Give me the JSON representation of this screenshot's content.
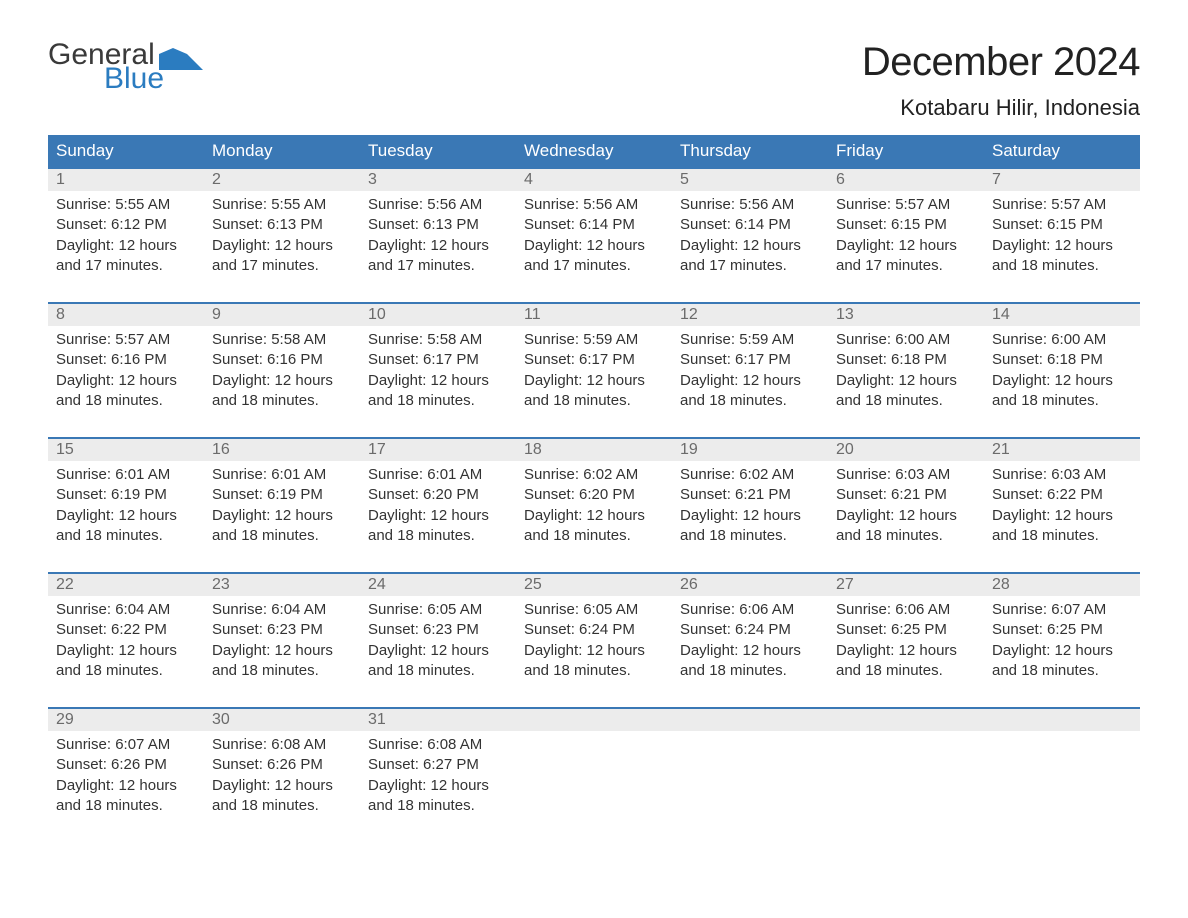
{
  "logo": {
    "word1": "General",
    "word2": "Blue"
  },
  "title": "December 2024",
  "location": "Kotabaru Hilir, Indonesia",
  "colors": {
    "header_bg": "#3a78b5",
    "header_text": "#ffffff",
    "row_border": "#3a78b5",
    "daynum_bg": "#ececec",
    "daynum_text": "#6b6b6b",
    "body_text": "#333333",
    "logo_dark": "#3a3a3a",
    "logo_blue": "#2b7cc0",
    "page_bg": "#ffffff"
  },
  "fonts": {
    "title_size_pt": 30,
    "location_size_pt": 16,
    "header_size_pt": 13,
    "body_size_pt": 11
  },
  "days_of_week": [
    "Sunday",
    "Monday",
    "Tuesday",
    "Wednesday",
    "Thursday",
    "Friday",
    "Saturday"
  ],
  "weeks": [
    [
      {
        "n": "1",
        "sunrise": "Sunrise: 5:55 AM",
        "sunset": "Sunset: 6:12 PM",
        "day1": "Daylight: 12 hours",
        "day2": "and 17 minutes."
      },
      {
        "n": "2",
        "sunrise": "Sunrise: 5:55 AM",
        "sunset": "Sunset: 6:13 PM",
        "day1": "Daylight: 12 hours",
        "day2": "and 17 minutes."
      },
      {
        "n": "3",
        "sunrise": "Sunrise: 5:56 AM",
        "sunset": "Sunset: 6:13 PM",
        "day1": "Daylight: 12 hours",
        "day2": "and 17 minutes."
      },
      {
        "n": "4",
        "sunrise": "Sunrise: 5:56 AM",
        "sunset": "Sunset: 6:14 PM",
        "day1": "Daylight: 12 hours",
        "day2": "and 17 minutes."
      },
      {
        "n": "5",
        "sunrise": "Sunrise: 5:56 AM",
        "sunset": "Sunset: 6:14 PM",
        "day1": "Daylight: 12 hours",
        "day2": "and 17 minutes."
      },
      {
        "n": "6",
        "sunrise": "Sunrise: 5:57 AM",
        "sunset": "Sunset: 6:15 PM",
        "day1": "Daylight: 12 hours",
        "day2": "and 17 minutes."
      },
      {
        "n": "7",
        "sunrise": "Sunrise: 5:57 AM",
        "sunset": "Sunset: 6:15 PM",
        "day1": "Daylight: 12 hours",
        "day2": "and 18 minutes."
      }
    ],
    [
      {
        "n": "8",
        "sunrise": "Sunrise: 5:57 AM",
        "sunset": "Sunset: 6:16 PM",
        "day1": "Daylight: 12 hours",
        "day2": "and 18 minutes."
      },
      {
        "n": "9",
        "sunrise": "Sunrise: 5:58 AM",
        "sunset": "Sunset: 6:16 PM",
        "day1": "Daylight: 12 hours",
        "day2": "and 18 minutes."
      },
      {
        "n": "10",
        "sunrise": "Sunrise: 5:58 AM",
        "sunset": "Sunset: 6:17 PM",
        "day1": "Daylight: 12 hours",
        "day2": "and 18 minutes."
      },
      {
        "n": "11",
        "sunrise": "Sunrise: 5:59 AM",
        "sunset": "Sunset: 6:17 PM",
        "day1": "Daylight: 12 hours",
        "day2": "and 18 minutes."
      },
      {
        "n": "12",
        "sunrise": "Sunrise: 5:59 AM",
        "sunset": "Sunset: 6:17 PM",
        "day1": "Daylight: 12 hours",
        "day2": "and 18 minutes."
      },
      {
        "n": "13",
        "sunrise": "Sunrise: 6:00 AM",
        "sunset": "Sunset: 6:18 PM",
        "day1": "Daylight: 12 hours",
        "day2": "and 18 minutes."
      },
      {
        "n": "14",
        "sunrise": "Sunrise: 6:00 AM",
        "sunset": "Sunset: 6:18 PM",
        "day1": "Daylight: 12 hours",
        "day2": "and 18 minutes."
      }
    ],
    [
      {
        "n": "15",
        "sunrise": "Sunrise: 6:01 AM",
        "sunset": "Sunset: 6:19 PM",
        "day1": "Daylight: 12 hours",
        "day2": "and 18 minutes."
      },
      {
        "n": "16",
        "sunrise": "Sunrise: 6:01 AM",
        "sunset": "Sunset: 6:19 PM",
        "day1": "Daylight: 12 hours",
        "day2": "and 18 minutes."
      },
      {
        "n": "17",
        "sunrise": "Sunrise: 6:01 AM",
        "sunset": "Sunset: 6:20 PM",
        "day1": "Daylight: 12 hours",
        "day2": "and 18 minutes."
      },
      {
        "n": "18",
        "sunrise": "Sunrise: 6:02 AM",
        "sunset": "Sunset: 6:20 PM",
        "day1": "Daylight: 12 hours",
        "day2": "and 18 minutes."
      },
      {
        "n": "19",
        "sunrise": "Sunrise: 6:02 AM",
        "sunset": "Sunset: 6:21 PM",
        "day1": "Daylight: 12 hours",
        "day2": "and 18 minutes."
      },
      {
        "n": "20",
        "sunrise": "Sunrise: 6:03 AM",
        "sunset": "Sunset: 6:21 PM",
        "day1": "Daylight: 12 hours",
        "day2": "and 18 minutes."
      },
      {
        "n": "21",
        "sunrise": "Sunrise: 6:03 AM",
        "sunset": "Sunset: 6:22 PM",
        "day1": "Daylight: 12 hours",
        "day2": "and 18 minutes."
      }
    ],
    [
      {
        "n": "22",
        "sunrise": "Sunrise: 6:04 AM",
        "sunset": "Sunset: 6:22 PM",
        "day1": "Daylight: 12 hours",
        "day2": "and 18 minutes."
      },
      {
        "n": "23",
        "sunrise": "Sunrise: 6:04 AM",
        "sunset": "Sunset: 6:23 PM",
        "day1": "Daylight: 12 hours",
        "day2": "and 18 minutes."
      },
      {
        "n": "24",
        "sunrise": "Sunrise: 6:05 AM",
        "sunset": "Sunset: 6:23 PM",
        "day1": "Daylight: 12 hours",
        "day2": "and 18 minutes."
      },
      {
        "n": "25",
        "sunrise": "Sunrise: 6:05 AM",
        "sunset": "Sunset: 6:24 PM",
        "day1": "Daylight: 12 hours",
        "day2": "and 18 minutes."
      },
      {
        "n": "26",
        "sunrise": "Sunrise: 6:06 AM",
        "sunset": "Sunset: 6:24 PM",
        "day1": "Daylight: 12 hours",
        "day2": "and 18 minutes."
      },
      {
        "n": "27",
        "sunrise": "Sunrise: 6:06 AM",
        "sunset": "Sunset: 6:25 PM",
        "day1": "Daylight: 12 hours",
        "day2": "and 18 minutes."
      },
      {
        "n": "28",
        "sunrise": "Sunrise: 6:07 AM",
        "sunset": "Sunset: 6:25 PM",
        "day1": "Daylight: 12 hours",
        "day2": "and 18 minutes."
      }
    ],
    [
      {
        "n": "29",
        "sunrise": "Sunrise: 6:07 AM",
        "sunset": "Sunset: 6:26 PM",
        "day1": "Daylight: 12 hours",
        "day2": "and 18 minutes."
      },
      {
        "n": "30",
        "sunrise": "Sunrise: 6:08 AM",
        "sunset": "Sunset: 6:26 PM",
        "day1": "Daylight: 12 hours",
        "day2": "and 18 minutes."
      },
      {
        "n": "31",
        "sunrise": "Sunrise: 6:08 AM",
        "sunset": "Sunset: 6:27 PM",
        "day1": "Daylight: 12 hours",
        "day2": "and 18 minutes."
      },
      {
        "empty": true
      },
      {
        "empty": true
      },
      {
        "empty": true
      },
      {
        "empty": true
      }
    ]
  ]
}
